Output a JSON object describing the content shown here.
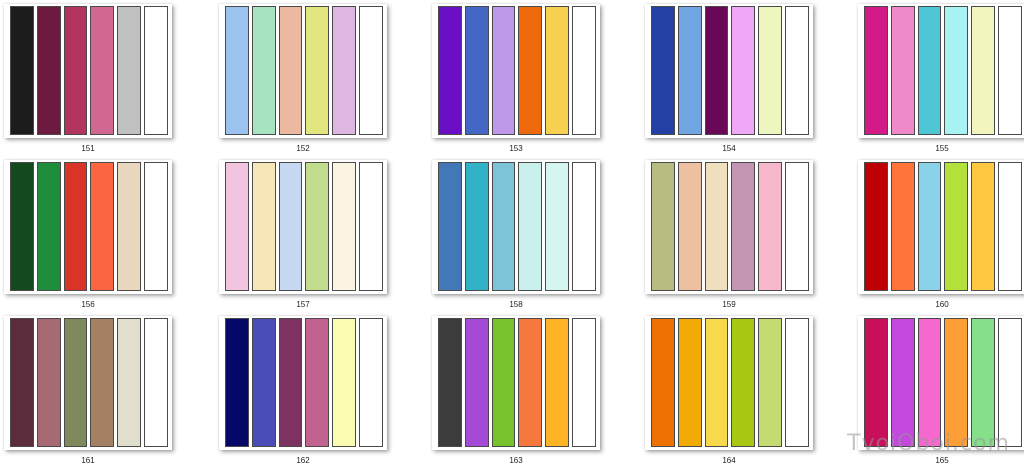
{
  "palettes": [
    {
      "label": "151",
      "colors": [
        "#1c1c1c",
        "#6e1a40",
        "#b23560",
        "#d06891",
        "#c0c0c0",
        "#ffffff"
      ]
    },
    {
      "label": "152",
      "colors": [
        "#9ac4ef",
        "#a6e3c0",
        "#ecb8a0",
        "#e2e67e",
        "#deb6e2",
        "#ffffff"
      ]
    },
    {
      "label": "153",
      "colors": [
        "#6a0fc4",
        "#4466c4",
        "#c098ea",
        "#ee6a0d",
        "#f6d04e",
        "#ffffff"
      ]
    },
    {
      "label": "154",
      "colors": [
        "#2440a4",
        "#72a6e2",
        "#6a0858",
        "#f0a8f6",
        "#eef6c0",
        "#ffffff"
      ]
    },
    {
      "label": "155",
      "colors": [
        "#d21a88",
        "#ee8aca",
        "#4ec6d6",
        "#a8f2f4",
        "#f2f6be",
        "#ffffff"
      ]
    },
    {
      "label": "156",
      "colors": [
        "#134a1e",
        "#1f8e3c",
        "#da3428",
        "#fc6442",
        "#ead8be",
        "#ffffff"
      ]
    },
    {
      "label": "157",
      "colors": [
        "#f2c4e0",
        "#f6e6b8",
        "#c6d8f2",
        "#c2dc8e",
        "#fcf4e2",
        "#ffffff"
      ]
    },
    {
      "label": "158",
      "colors": [
        "#4278b8",
        "#32b2c6",
        "#7ec4d8",
        "#caf0ee",
        "#d6f6f2",
        "#ffffff"
      ]
    },
    {
      "label": "159",
      "colors": [
        "#b8bc80",
        "#eec0a2",
        "#f0e0c0",
        "#c296b2",
        "#f6b8ca",
        "#ffffff"
      ]
    },
    {
      "label": "160",
      "colors": [
        "#bc0004",
        "#fe743a",
        "#8ad2e8",
        "#b4e03c",
        "#fec840",
        "#ffffff"
      ]
    },
    {
      "label": "161",
      "colors": [
        "#5a2c3c",
        "#a86a72",
        "#7e8a5c",
        "#a68062",
        "#e2dece",
        "#ffffff"
      ]
    },
    {
      "label": "162",
      "colors": [
        "#060868",
        "#4a4cb8",
        "#7e3262",
        "#c26290",
        "#fafcb2",
        "#ffffff"
      ]
    },
    {
      "label": "163",
      "colors": [
        "#3c3c3c",
        "#a44ad6",
        "#78c22e",
        "#f6783c",
        "#feb426",
        "#ffffff"
      ]
    },
    {
      "label": "164",
      "colors": [
        "#ec7004",
        "#f2aa06",
        "#f8d84c",
        "#a6c812",
        "#c4da72",
        "#ffffff"
      ]
    },
    {
      "label": "165",
      "colors": [
        "#c8105a",
        "#c44ade",
        "#f668ce",
        "#fe9e36",
        "#86e08a",
        "#ffffff"
      ]
    }
  ],
  "watermark": "TvoiOboi.com"
}
